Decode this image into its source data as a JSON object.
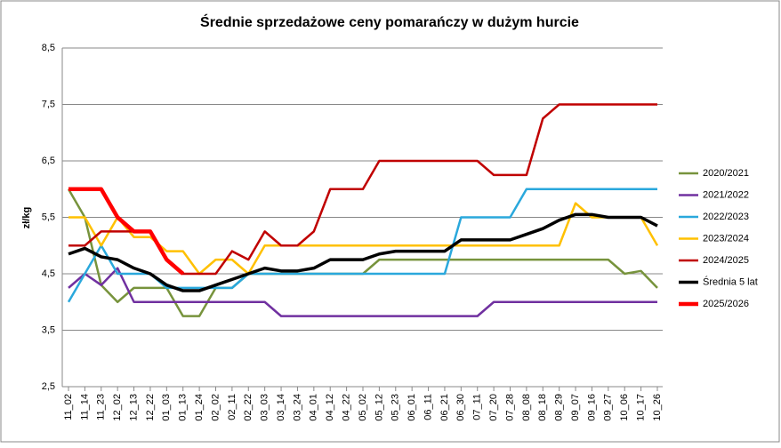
{
  "chart_data": {
    "type": "line",
    "title": "Średnie sprzedażowe ceny pomarańczy w dużym hurcie",
    "y_label": "zł/kg",
    "categories": [
      "11_02",
      "11_14",
      "11_23",
      "12_02",
      "12_13",
      "12_22",
      "01_03",
      "01_13",
      "01_24",
      "02_02",
      "02_11",
      "02_22",
      "03_03",
      "03_14",
      "03_24",
      "04_01",
      "04_12",
      "04_22",
      "05_02",
      "05_12",
      "05_23",
      "06_01",
      "06_11",
      "06_21",
      "06_30",
      "07_11",
      "07_20",
      "07_28",
      "08_08",
      "08_18",
      "08_29",
      "09_07",
      "09_16",
      "09_27",
      "10_06",
      "10_17",
      "10_26"
    ],
    "ylim": [
      2.5,
      8.5
    ],
    "yticks": [
      {
        "value": 2.5,
        "label": "2,5"
      },
      {
        "value": 3.5,
        "label": "3,5"
      },
      {
        "value": 4.5,
        "label": "4,5"
      },
      {
        "value": 5.5,
        "label": "5,5"
      },
      {
        "value": 6.5,
        "label": "6,5"
      },
      {
        "value": 7.5,
        "label": "7,5"
      },
      {
        "value": 8.5,
        "label": "8,5"
      }
    ],
    "grid": true,
    "legend": "right",
    "series": [
      {
        "name": "2020/2021",
        "color": "#77933c",
        "width": 2.5,
        "values": [
          6.0,
          5.5,
          4.3,
          4.0,
          4.25,
          4.25,
          4.25,
          3.75,
          3.75,
          4.25,
          4.25,
          4.5,
          4.5,
          4.5,
          4.5,
          4.5,
          4.5,
          4.5,
          4.5,
          4.75,
          4.75,
          4.75,
          4.75,
          4.75,
          4.75,
          4.75,
          4.75,
          4.75,
          4.75,
          4.75,
          4.75,
          4.75,
          4.75,
          4.75,
          4.5,
          4.55,
          4.25
        ]
      },
      {
        "name": "2021/2022",
        "color": "#7030a0",
        "width": 2.5,
        "values": [
          4.25,
          4.5,
          4.3,
          4.6,
          4.0,
          4.0,
          4.0,
          4.0,
          4.0,
          4.0,
          4.0,
          4.0,
          4.0,
          3.75,
          3.75,
          3.75,
          3.75,
          3.75,
          3.75,
          3.75,
          3.75,
          3.75,
          3.75,
          3.75,
          3.75,
          3.75,
          4.0,
          4.0,
          4.0,
          4.0,
          4.0,
          4.0,
          4.0,
          4.0,
          4.0,
          4.0,
          4.0
        ]
      },
      {
        "name": "2022/2023",
        "color": "#2aa8dc",
        "width": 2.5,
        "values": [
          4.0,
          4.5,
          5.0,
          4.5,
          4.5,
          4.5,
          4.25,
          4.25,
          4.25,
          4.25,
          4.25,
          4.5,
          4.5,
          4.5,
          4.5,
          4.5,
          4.5,
          4.5,
          4.5,
          4.5,
          4.5,
          4.5,
          4.5,
          4.5,
          5.5,
          5.5,
          5.5,
          5.5,
          6.0,
          6.0,
          6.0,
          6.0,
          6.0,
          6.0,
          6.0,
          6.0,
          6.0
        ]
      },
      {
        "name": "2023/2024",
        "color": "#ffc000",
        "width": 2.5,
        "values": [
          5.5,
          5.5,
          5.0,
          5.5,
          5.15,
          5.15,
          4.9,
          4.9,
          4.5,
          4.75,
          4.75,
          4.5,
          5.0,
          5.0,
          5.0,
          5.0,
          5.0,
          5.0,
          5.0,
          5.0,
          5.0,
          5.0,
          5.0,
          5.0,
          5.0,
          5.0,
          5.0,
          5.0,
          5.0,
          5.0,
          5.0,
          5.75,
          5.5,
          5.5,
          5.5,
          5.5,
          5.0
        ]
      },
      {
        "name": "2024/2025",
        "color": "#c00000",
        "width": 2.5,
        "values": [
          5.0,
          5.0,
          5.25,
          5.25,
          5.25,
          5.25,
          4.75,
          4.5,
          4.5,
          4.5,
          4.9,
          4.75,
          5.25,
          5.0,
          5.0,
          5.25,
          6.0,
          6.0,
          6.0,
          6.5,
          6.5,
          6.5,
          6.5,
          6.5,
          6.5,
          6.5,
          6.25,
          6.25,
          6.25,
          7.25,
          7.5,
          7.5,
          7.5,
          7.5,
          7.5,
          7.5,
          7.5
        ]
      },
      {
        "name": "Średnia 5 lat",
        "color": "#000000",
        "width": 3.5,
        "values": [
          4.85,
          4.95,
          4.8,
          4.75,
          4.6,
          4.5,
          4.3,
          4.2,
          4.2,
          4.3,
          4.4,
          4.5,
          4.6,
          4.55,
          4.55,
          4.6,
          4.75,
          4.75,
          4.75,
          4.85,
          4.9,
          4.9,
          4.9,
          4.9,
          5.1,
          5.1,
          5.1,
          5.1,
          5.2,
          5.3,
          5.45,
          5.55,
          5.55,
          5.5,
          5.5,
          5.5,
          5.35
        ]
      },
      {
        "name": "2025/2026",
        "color": "#ff0000",
        "width": 4.5,
        "values": [
          6.0,
          6.0,
          6.0,
          5.5,
          5.25,
          5.25,
          4.75,
          4.5,
          null,
          null,
          null,
          null,
          null,
          null,
          null,
          null,
          null,
          null,
          null,
          null,
          null,
          null,
          null,
          null,
          null,
          null,
          null,
          null,
          null,
          null,
          null,
          null,
          null,
          null,
          null,
          null,
          null
        ]
      }
    ]
  }
}
